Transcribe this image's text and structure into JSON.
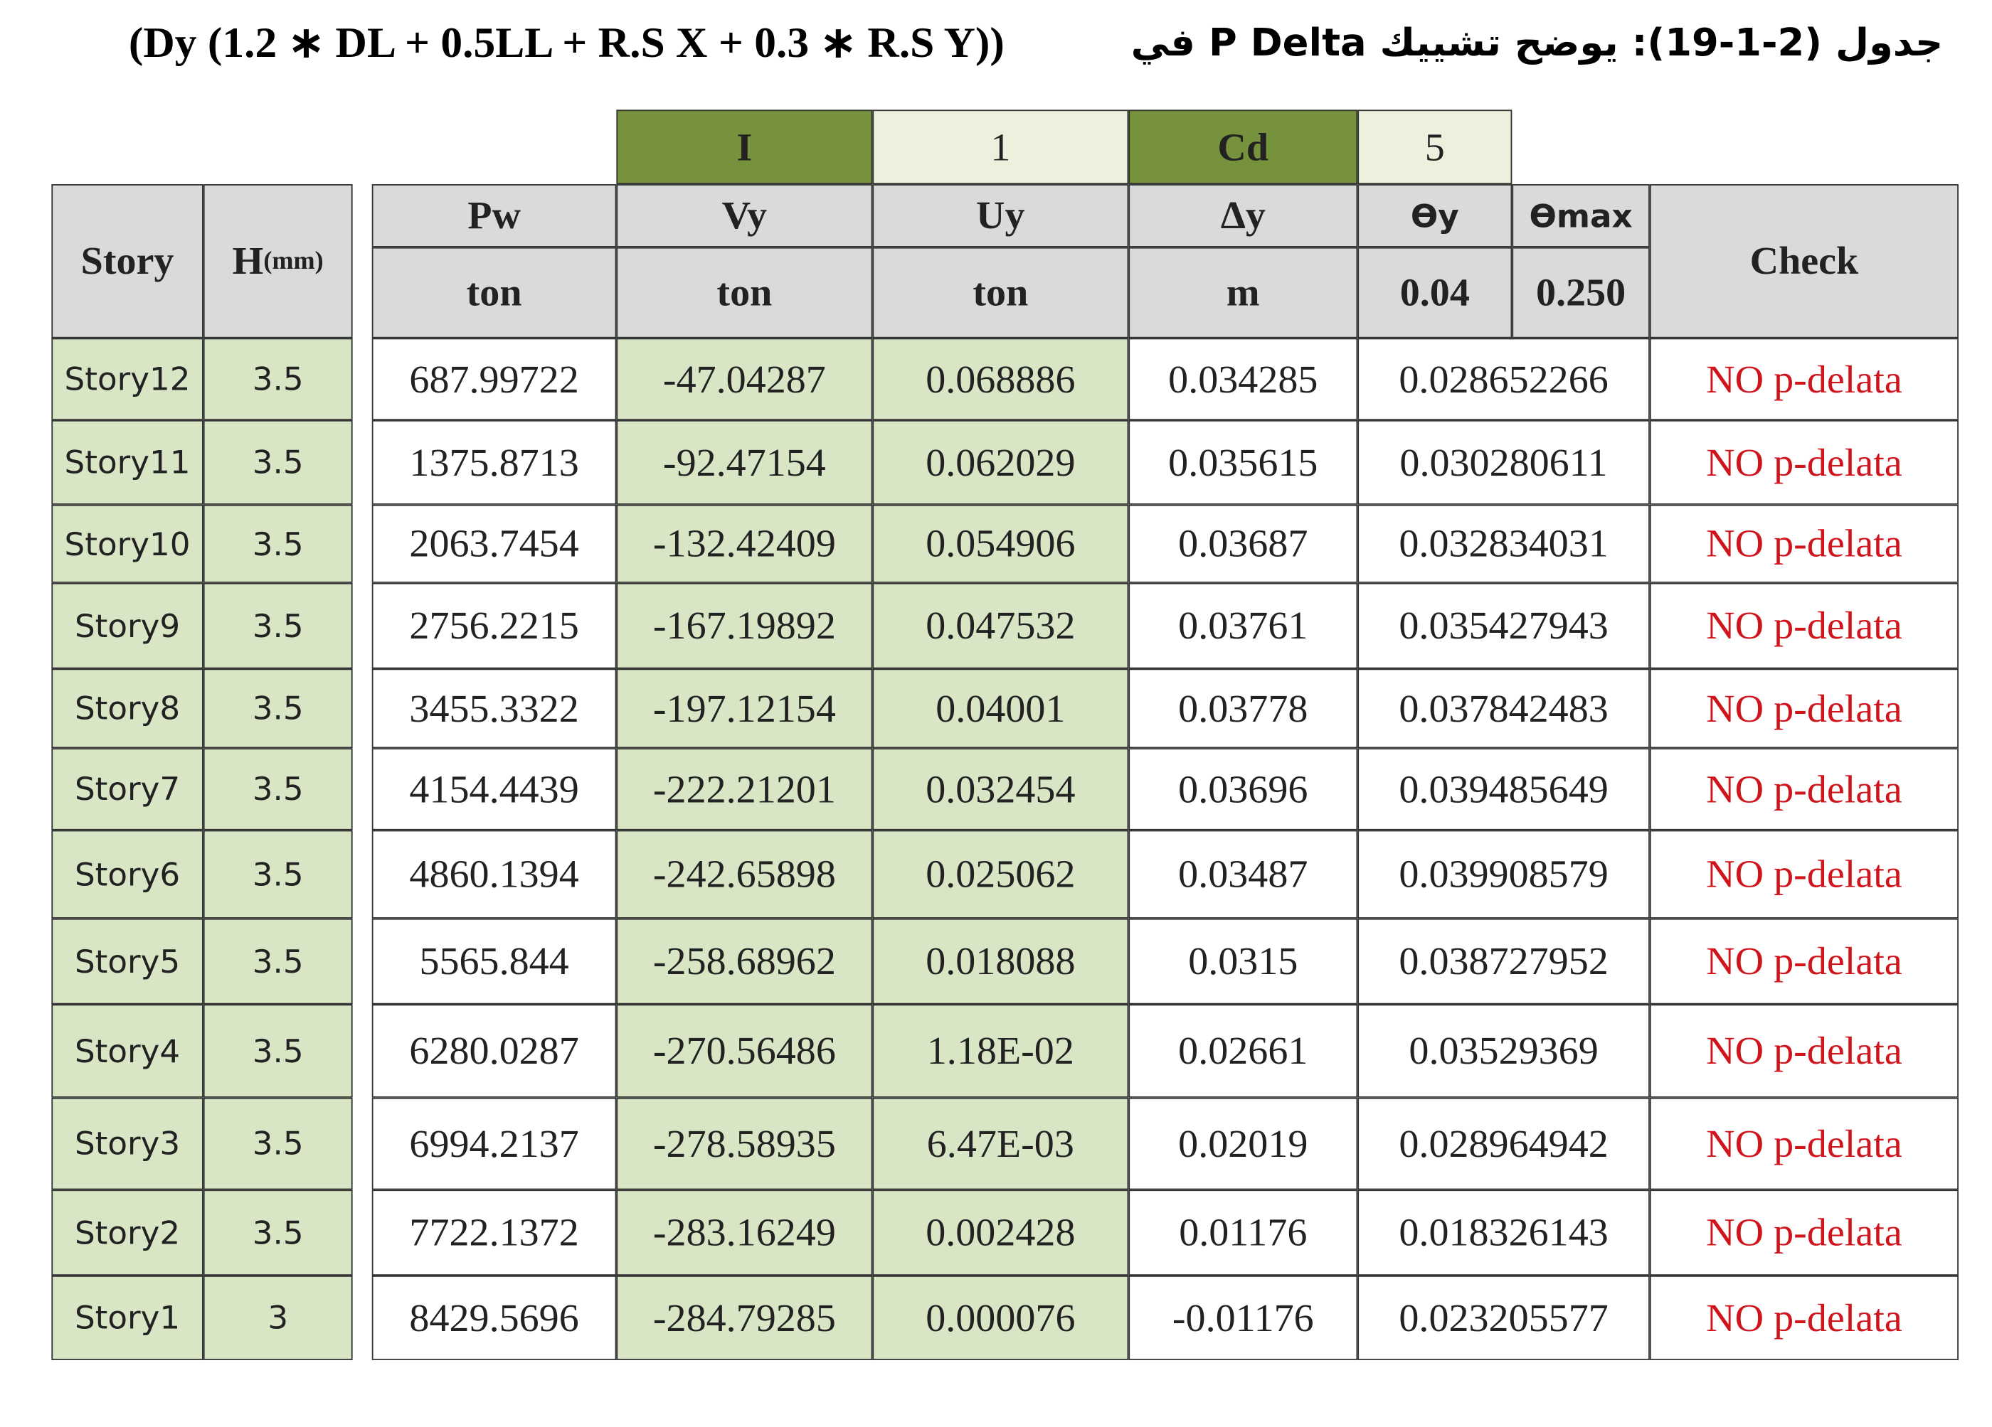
{
  "title": {
    "arabic": "جدول (2-1-19): يوضح تشييك P Delta في",
    "formula": "(Dy (1.2 ∗ DL + 0.5LL + R.S X + 0.3 ∗ R.S Y))"
  },
  "params": [
    "I",
    "1",
    "Cd",
    "5"
  ],
  "headers": {
    "story": "Story",
    "h": "H",
    "h_unit": "(mm)",
    "pw": "Pw",
    "vy": "Vy",
    "uy": "Uy",
    "dy": "Δy",
    "theta_y": "ϴy",
    "theta_max": "ϴmax",
    "check": "Check"
  },
  "units": [
    "ton",
    "ton",
    "ton",
    "m",
    "0.04",
    "0.250"
  ],
  "rows": [
    [
      "Story12",
      "3.5",
      "687.99722",
      "-47.04287",
      "0.068886",
      "0.034285",
      "0.028652266",
      "NO p-delata"
    ],
    [
      "Story11",
      "3.5",
      "1375.8713",
      "-92.47154",
      "0.062029",
      "0.035615",
      "0.030280611",
      "NO p-delata"
    ],
    [
      "Story10",
      "3.5",
      "2063.7454",
      "-132.42409",
      "0.054906",
      "0.03687",
      "0.032834031",
      "NO p-delata"
    ],
    [
      "Story9",
      "3.5",
      "2756.2215",
      "-167.19892",
      "0.047532",
      "0.03761",
      "0.035427943",
      "NO p-delata"
    ],
    [
      "Story8",
      "3.5",
      "3455.3322",
      "-197.12154",
      "0.04001",
      "0.03778",
      "0.037842483",
      "NO p-delata"
    ],
    [
      "Story7",
      "3.5",
      "4154.4439",
      "-222.21201",
      "0.032454",
      "0.03696",
      "0.039485649",
      "NO p-delata"
    ],
    [
      "Story6",
      "3.5",
      "4860.1394",
      "-242.65898",
      "0.025062",
      "0.03487",
      "0.039908579",
      "NO p-delata"
    ],
    [
      "Story5",
      "3.5",
      "5565.844",
      "-258.68962",
      "0.018088",
      "0.0315",
      "0.038727952",
      "NO p-delata"
    ],
    [
      "Story4",
      "3.5",
      "6280.0287",
      "-270.56486",
      "1.18E-02",
      "0.02661",
      "0.03529369",
      "NO p-delata"
    ],
    [
      "Story3",
      "3.5",
      "6994.2137",
      "-278.58935",
      "6.47E-03",
      "0.02019",
      "0.028964942",
      "NO p-delata"
    ],
    [
      "Story2",
      "3.5",
      "7722.1372",
      "-283.16249",
      "0.002428",
      "0.01176",
      "0.018326143",
      "NO p-delata"
    ],
    [
      "Story1",
      "3",
      "8429.5696",
      "-284.79285",
      "0.000076",
      "-0.01176",
      "0.023205577",
      "NO p-delata"
    ]
  ]
}
